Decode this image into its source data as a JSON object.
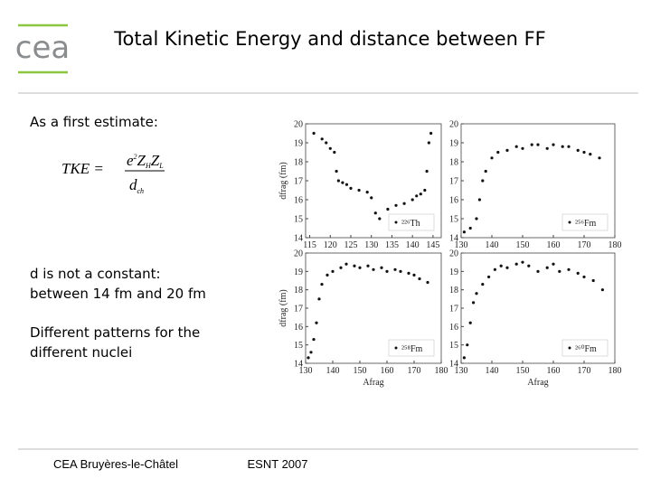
{
  "logo": "cea",
  "header": {
    "title": "Total Kinetic Energy and distance between FF"
  },
  "text": {
    "intro": "As a first estimate:",
    "formula": {
      "lhs": "TKE =",
      "num": [
        "e",
        "2",
        "Z",
        "H",
        "Z",
        "L"
      ],
      "den": [
        "d",
        "ch"
      ]
    },
    "lines": [
      "d is not a constant:",
      "between 14 fm and 20 fm",
      "Different patterns for the",
      "different nuclei"
    ]
  },
  "footer": {
    "left": "CEA Bruyères-le-Châtel",
    "right": "ESNT 2007"
  },
  "chart_data": [
    {
      "type": "scatter",
      "ylabel": "dfrag (fm)",
      "xlim": [
        114,
        147
      ],
      "xticks": [
        115,
        120,
        125,
        130,
        135,
        140,
        145
      ],
      "ylim": [
        14,
        20
      ],
      "yticks": [
        14,
        15,
        16,
        17,
        18,
        19,
        20
      ],
      "x": [
        116,
        118,
        119,
        120,
        121,
        121.5,
        122,
        123,
        124,
        125,
        127,
        129,
        130,
        131,
        132,
        134,
        136,
        138,
        140,
        141,
        142,
        143,
        143.5,
        144,
        144.5
      ],
      "series": [
        {
          "name": "²²⁶Th",
          "color": "#111111",
          "values": [
            19.5,
            19.2,
            19.0,
            18.7,
            18.5,
            17.5,
            17.0,
            16.9,
            16.8,
            16.6,
            16.5,
            16.4,
            16.1,
            15.3,
            15.0,
            15.5,
            15.7,
            15.8,
            16.0,
            16.2,
            16.3,
            16.5,
            17.5,
            19.0,
            19.5
          ]
        }
      ]
    },
    {
      "type": "scatter",
      "xlim": [
        130,
        180
      ],
      "xticks": [
        130,
        140,
        150,
        160,
        170,
        180
      ],
      "ylim": [
        14,
        20
      ],
      "yticks": [
        14,
        15,
        16,
        17,
        18,
        19,
        20
      ],
      "x": [
        131,
        133,
        135,
        136,
        137,
        138,
        140,
        142,
        145,
        148,
        150,
        153,
        155,
        158,
        160,
        163,
        165,
        168,
        170,
        172,
        175
      ],
      "series": [
        {
          "name": "²⁵⁶Fm",
          "color": "#111111",
          "values": [
            14.3,
            14.5,
            15.0,
            16.0,
            17.0,
            17.5,
            18.2,
            18.5,
            18.6,
            18.8,
            18.7,
            18.9,
            18.9,
            18.7,
            18.9,
            18.8,
            18.8,
            18.6,
            18.5,
            18.4,
            18.2
          ]
        }
      ]
    },
    {
      "type": "scatter",
      "ylabel": "dfrag (fm)",
      "xlabel": "Afrag",
      "xlim": [
        130,
        180
      ],
      "xticks": [
        130,
        140,
        150,
        160,
        170,
        180
      ],
      "ylim": [
        14,
        20
      ],
      "yticks": [
        14,
        15,
        16,
        17,
        18,
        19,
        20
      ],
      "x": [
        131,
        132,
        133,
        134,
        135,
        136,
        138,
        140,
        143,
        145,
        148,
        150,
        153,
        155,
        158,
        160,
        163,
        165,
        168,
        170,
        172,
        175
      ],
      "series": [
        {
          "name": "²⁵⁸Fm",
          "color": "#111111",
          "values": [
            14.3,
            14.6,
            15.3,
            16.2,
            17.5,
            18.3,
            18.8,
            19.0,
            19.2,
            19.4,
            19.3,
            19.2,
            19.3,
            19.1,
            19.2,
            19.0,
            19.1,
            19.0,
            18.9,
            18.8,
            18.6,
            18.4
          ]
        }
      ]
    },
    {
      "type": "scatter",
      "xlabel": "Afrag",
      "xlim": [
        130,
        180
      ],
      "xticks": [
        130,
        140,
        150,
        160,
        170,
        180
      ],
      "ylim": [
        14,
        20
      ],
      "yticks": [
        14,
        15,
        16,
        17,
        18,
        19,
        20
      ],
      "x": [
        131,
        132,
        133,
        134,
        135,
        137,
        139,
        141,
        143,
        145,
        148,
        150,
        152,
        155,
        158,
        160,
        162,
        165,
        168,
        170,
        173,
        176
      ],
      "series": [
        {
          "name": "²⁶⁰Fm",
          "color": "#111111",
          "values": [
            14.3,
            15.0,
            16.2,
            17.3,
            17.8,
            18.3,
            18.7,
            19.1,
            19.3,
            19.2,
            19.4,
            19.5,
            19.3,
            19.0,
            19.2,
            19.4,
            19.0,
            19.1,
            18.9,
            18.7,
            18.5,
            18.0
          ]
        }
      ]
    }
  ]
}
